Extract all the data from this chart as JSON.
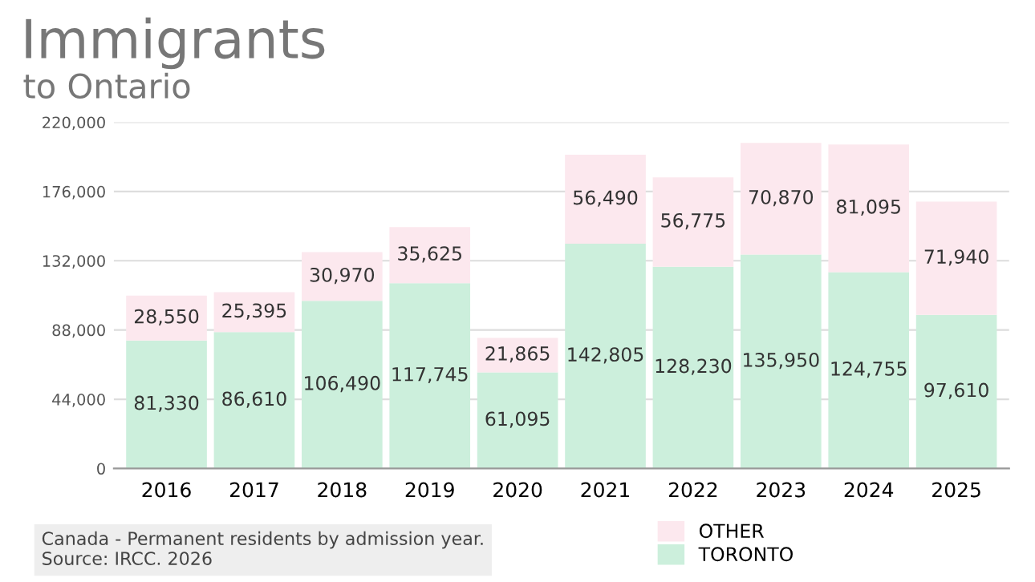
{
  "chart_data": {
    "type": "bar",
    "title": "Immigrants",
    "subtitle": "to Ontario",
    "stacked": true,
    "categories": [
      "2016",
      "2017",
      "2018",
      "2019",
      "2020",
      "2021",
      "2022",
      "2023",
      "2024",
      "2025"
    ],
    "series": [
      {
        "name": "TORONTO",
        "color": "#ccefdc",
        "values": [
          81330,
          86610,
          106490,
          117745,
          61095,
          142805,
          128230,
          135950,
          124755,
          97610
        ],
        "value_labels": [
          "81,330",
          "86,610",
          "106,490",
          "117,745",
          "61,095",
          "142,805",
          "128,230",
          "135,950",
          "124,755",
          "97,610"
        ]
      },
      {
        "name": "OTHER",
        "color": "#fce8ee",
        "values": [
          28550,
          25395,
          30970,
          35625,
          21865,
          56490,
          56775,
          70870,
          81095,
          71940
        ],
        "value_labels": [
          "28,550",
          "25,395",
          "30,970",
          "35,625",
          "21,865",
          "56,490",
          "56,775",
          "70,870",
          "81,095",
          "71,940"
        ]
      }
    ],
    "ylim": [
      0,
      220000
    ],
    "yticks": [
      {
        "value": 0,
        "label": "0"
      },
      {
        "value": 44000,
        "label": "44,000"
      },
      {
        "value": 88000,
        "label": "88,000"
      },
      {
        "value": 132000,
        "label": "132,000"
      },
      {
        "value": 176000,
        "label": "176,000"
      },
      {
        "value": 220000,
        "label": "220,000"
      }
    ],
    "grid": "y",
    "legend": "bottom right",
    "annotations": [
      "Canada - Permanent residents by admission year.",
      "Source: IRCC. 2026"
    ]
  }
}
